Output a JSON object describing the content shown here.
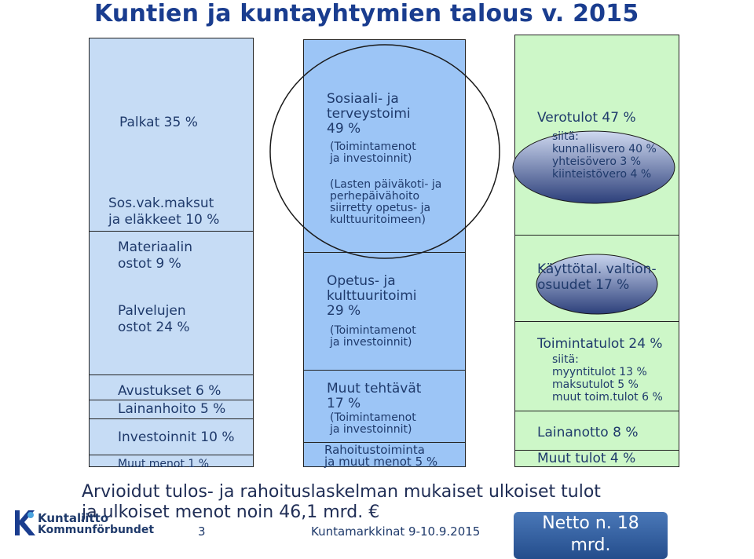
{
  "title": "Kuntien ja kuntayhtymien talous v. 2015",
  "costs": {
    "palkat": "Palkat 35 %",
    "sosvak": "Sos.vak.maksut\nja eläkkeet 10 %",
    "materiaalin": "Materiaalin\nostot 9 %",
    "palvelujen": "Palvelujen\nostot  24 %",
    "avustukset": "Avustukset 6 %",
    "lainanhoito": "Lainanhoito 5 %",
    "investoinnit": "Investoinnit 10 %",
    "muut_menot": "Muut menot 1 %"
  },
  "tasks": {
    "sote_title": "Sosiaali- ja\nterveystoimi\n49 %",
    "sote_note": "(Toimintamenot\n ja investoinnit)",
    "sote_note2": "(Lasten päiväkoti- ja\nperhepäivähoito\nsiirretty opetus- ja\nkulttuuritoimeen)",
    "opetus_title": "Opetus- ja\nkulttuuritoimi\n29 %",
    "opetus_note": "(Toimintamenot\n ja investoinnit)",
    "muut_title": "Muut tehtävät\n17 %",
    "muut_note": "(Toimintamenot\n ja investoinnit)",
    "rahoitus": "Rahoitustoiminta\nja muut menot 5 %"
  },
  "revenues": {
    "verotulot": "Verotulot 47 %",
    "verotulot_detail": "siitä:\nkunnallisvero 40 %\nyhteisövero 3 %\nkiinteistövero 4 %",
    "valtionosuudet": "Käyttötal. valtion-\nosuudet 17 %",
    "toimintatulot": "Toimintatulot 24 %",
    "toimintatulot_detail": "siitä:\nmyyntitulot 13 %\nmaksutulot 5 %\nmuut toim.tulot 6 %",
    "lainanotto": "Lainanotto 8 %",
    "muut_tulot": "Muut tulot 4 %"
  },
  "summary": "Arvioidut tulos- ja rahoituslaskelman mukaiset ulkoiset tulot\n    ja ulkoiset menot noin 46,1 mrd. €",
  "netto": "Netto n. 18\nmrd.",
  "footer": {
    "page": "3",
    "event": "Kuntamarkkinat 9-10.9.2015",
    "logo_line1": "Kuntaliitto",
    "logo_line2": "Kommunförbundet"
  },
  "colors": {
    "title": "#1a3d8f",
    "costs_bg": "#c6dcf5",
    "tasks_bg": "#9cc5f6",
    "revenues_bg": "#cdf7c8",
    "netto_bg": "#2c5a9c"
  }
}
